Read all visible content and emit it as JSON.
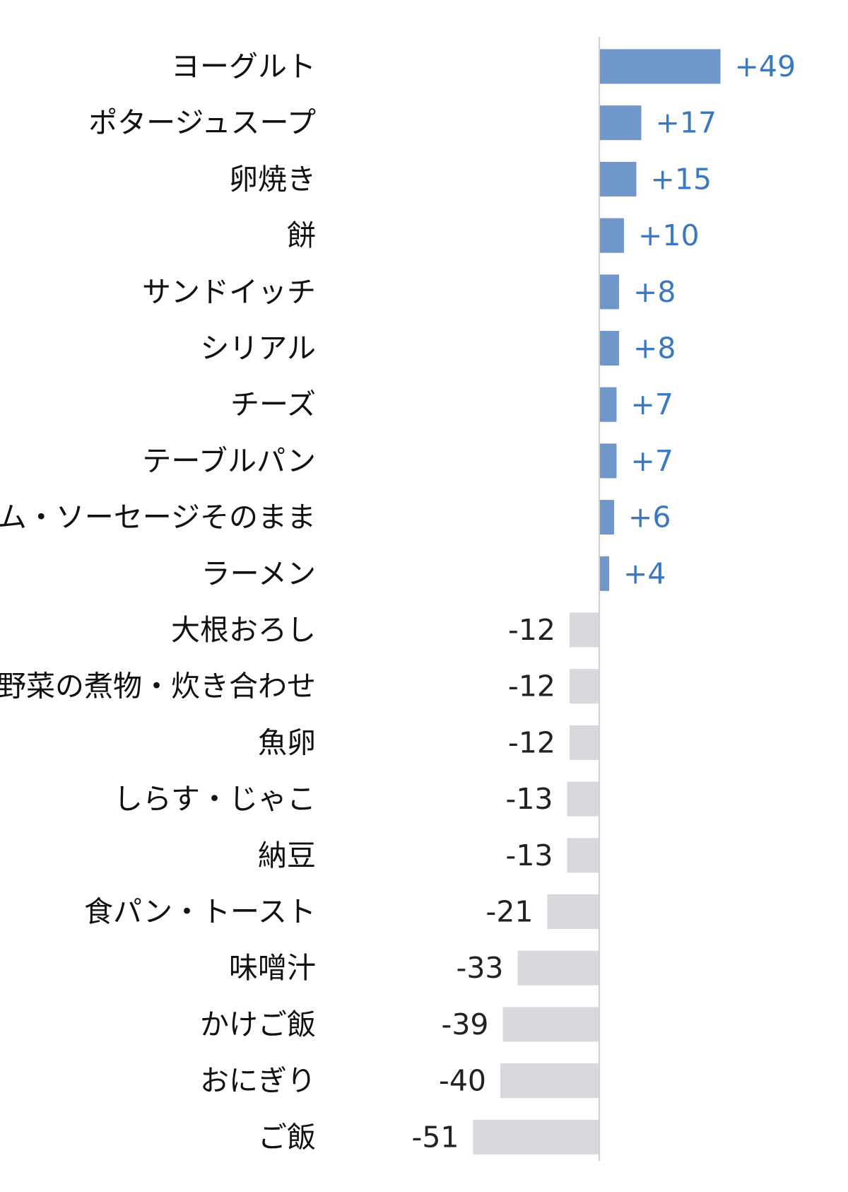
{
  "chart_data": {
    "type": "bar",
    "orientation": "horizontal",
    "title": "",
    "xlabel": "",
    "ylabel": "",
    "grid": false,
    "legend": "none",
    "xlim": [
      -51,
      49
    ],
    "categories": [
      "ヨーグルト",
      "ポタージュスープ",
      "卵焼き",
      "餅",
      "サンドイッチ",
      "シリアル",
      "チーズ",
      "テーブルパン",
      "ハム・ソーセージそのまま",
      "ラーメン",
      "大根おろし",
      "野菜の煮物・炊き合わせ",
      "魚卵",
      "しらす・じゃこ",
      "納豆",
      "食パン・トースト",
      "味噌汁",
      "かけご飯",
      "おにぎり",
      "ご飯"
    ],
    "values": [
      49,
      17,
      15,
      10,
      8,
      8,
      7,
      7,
      6,
      4,
      -12,
      -12,
      -12,
      -13,
      -13,
      -21,
      -33,
      -39,
      -40,
      -51
    ],
    "value_labels": [
      "+49",
      "+17",
      "+15",
      "+10",
      "+8",
      "+8",
      "+7",
      "+7",
      "+6",
      "+4",
      "-12",
      "-12",
      "-12",
      "-13",
      "-13",
      "-21",
      "-33",
      "-39",
      "-40",
      "-51"
    ],
    "colors": {
      "positive_bar": "#6f97ca",
      "negative_bar": "#d9d8dc",
      "positive_label": "#3b78c0",
      "negative_label": "#222222",
      "category_label": "#111111",
      "axis": "#d0d0d0"
    }
  }
}
